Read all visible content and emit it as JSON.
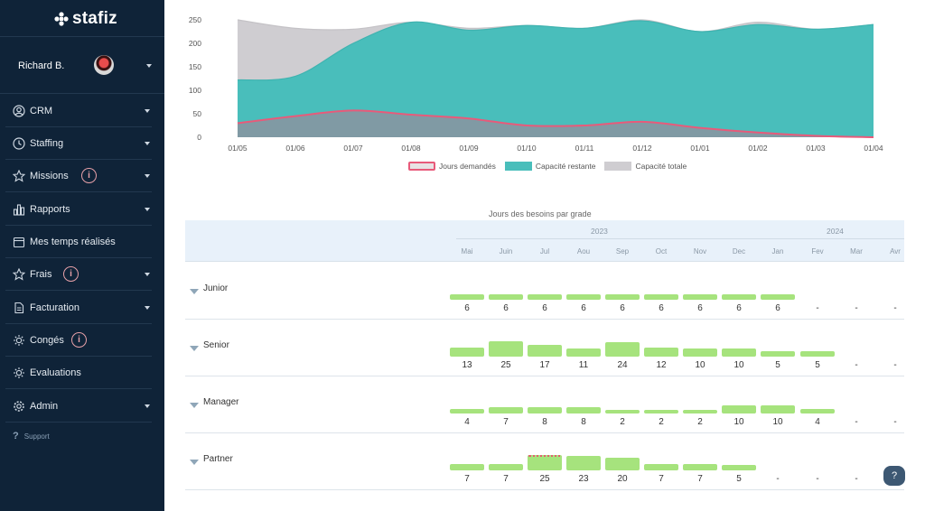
{
  "brand": {
    "logo_text": "stafiz"
  },
  "user": {
    "name": "Richard B."
  },
  "nav": [
    {
      "label": "CRM",
      "icon": "user-circle-icon",
      "has_chevron": true,
      "info": false
    },
    {
      "label": "Staffing",
      "icon": "clock-icon",
      "has_chevron": true,
      "info": false
    },
    {
      "label": "Missions",
      "icon": "star-icon",
      "has_chevron": true,
      "info": true
    },
    {
      "label": "Rapports",
      "icon": "bar-chart-icon",
      "has_chevron": true,
      "info": false
    },
    {
      "label": "Mes temps réalisés",
      "icon": "calendar-icon",
      "has_chevron": false,
      "info": false
    },
    {
      "label": "Frais",
      "icon": "star-icon",
      "has_chevron": true,
      "info": true
    },
    {
      "label": "Facturation",
      "icon": "document-icon",
      "has_chevron": true,
      "info": false
    },
    {
      "label": "Congés",
      "icon": "sun-icon",
      "has_chevron": false,
      "info": true
    },
    {
      "label": "Evaluations",
      "icon": "sun-icon",
      "has_chevron": false,
      "info": false
    },
    {
      "label": "Admin",
      "icon": "gear-icon",
      "has_chevron": true,
      "info": false
    }
  ],
  "support_label": "Support",
  "info_glyph": "i",
  "help_glyph": "?",
  "chart_data": {
    "type": "area",
    "x": [
      "01/05",
      "01/06",
      "01/07",
      "01/08",
      "01/09",
      "01/10",
      "01/11",
      "01/12",
      "01/01",
      "01/02",
      "01/03",
      "01/04"
    ],
    "yticks": [
      0,
      50,
      100,
      150,
      200,
      250
    ],
    "ylim": [
      0,
      250
    ],
    "series": [
      {
        "name": "Jours demandés",
        "color": "#e85a7a",
        "values": [
          30,
          45,
          57,
          48,
          40,
          25,
          25,
          33,
          20,
          10,
          3,
          0
        ]
      },
      {
        "name": "Capacité restante",
        "color": "#49bebb",
        "values": [
          122,
          130,
          200,
          245,
          228,
          238,
          232,
          248,
          225,
          240,
          230,
          240
        ]
      },
      {
        "name": "Capacité totale",
        "color": "#cfcdd1",
        "values": [
          250,
          232,
          230,
          245,
          232,
          238,
          232,
          250,
          225,
          245,
          230,
          240
        ]
      }
    ]
  },
  "grades": {
    "title": "Jours des besoins par grade",
    "years": [
      "2023",
      "2024"
    ],
    "months": [
      "Mai",
      "Juin",
      "Jul",
      "Aou",
      "Sep",
      "Oct",
      "Nov",
      "Dec",
      "Jan",
      "Fev",
      "Mar",
      "Avr"
    ],
    "rows": [
      {
        "label": "Junior",
        "values": [
          "6",
          "6",
          "6",
          "6",
          "6",
          "6",
          "6",
          "6",
          "6",
          "-",
          "-",
          "-"
        ]
      },
      {
        "label": "Senior",
        "values": [
          "13",
          "25",
          "17",
          "11",
          "24",
          "12",
          "10",
          "10",
          "5",
          "5",
          "-",
          "-"
        ]
      },
      {
        "label": "Manager",
        "values": [
          "4",
          "7",
          "8",
          "8",
          "2",
          "2",
          "2",
          "10",
          "10",
          "4",
          "-",
          "-"
        ]
      },
      {
        "label": "Partner",
        "values": [
          "7",
          "7",
          "25",
          "23",
          "20",
          "7",
          "7",
          "5",
          "-",
          "-",
          "-",
          "-"
        ]
      }
    ]
  }
}
